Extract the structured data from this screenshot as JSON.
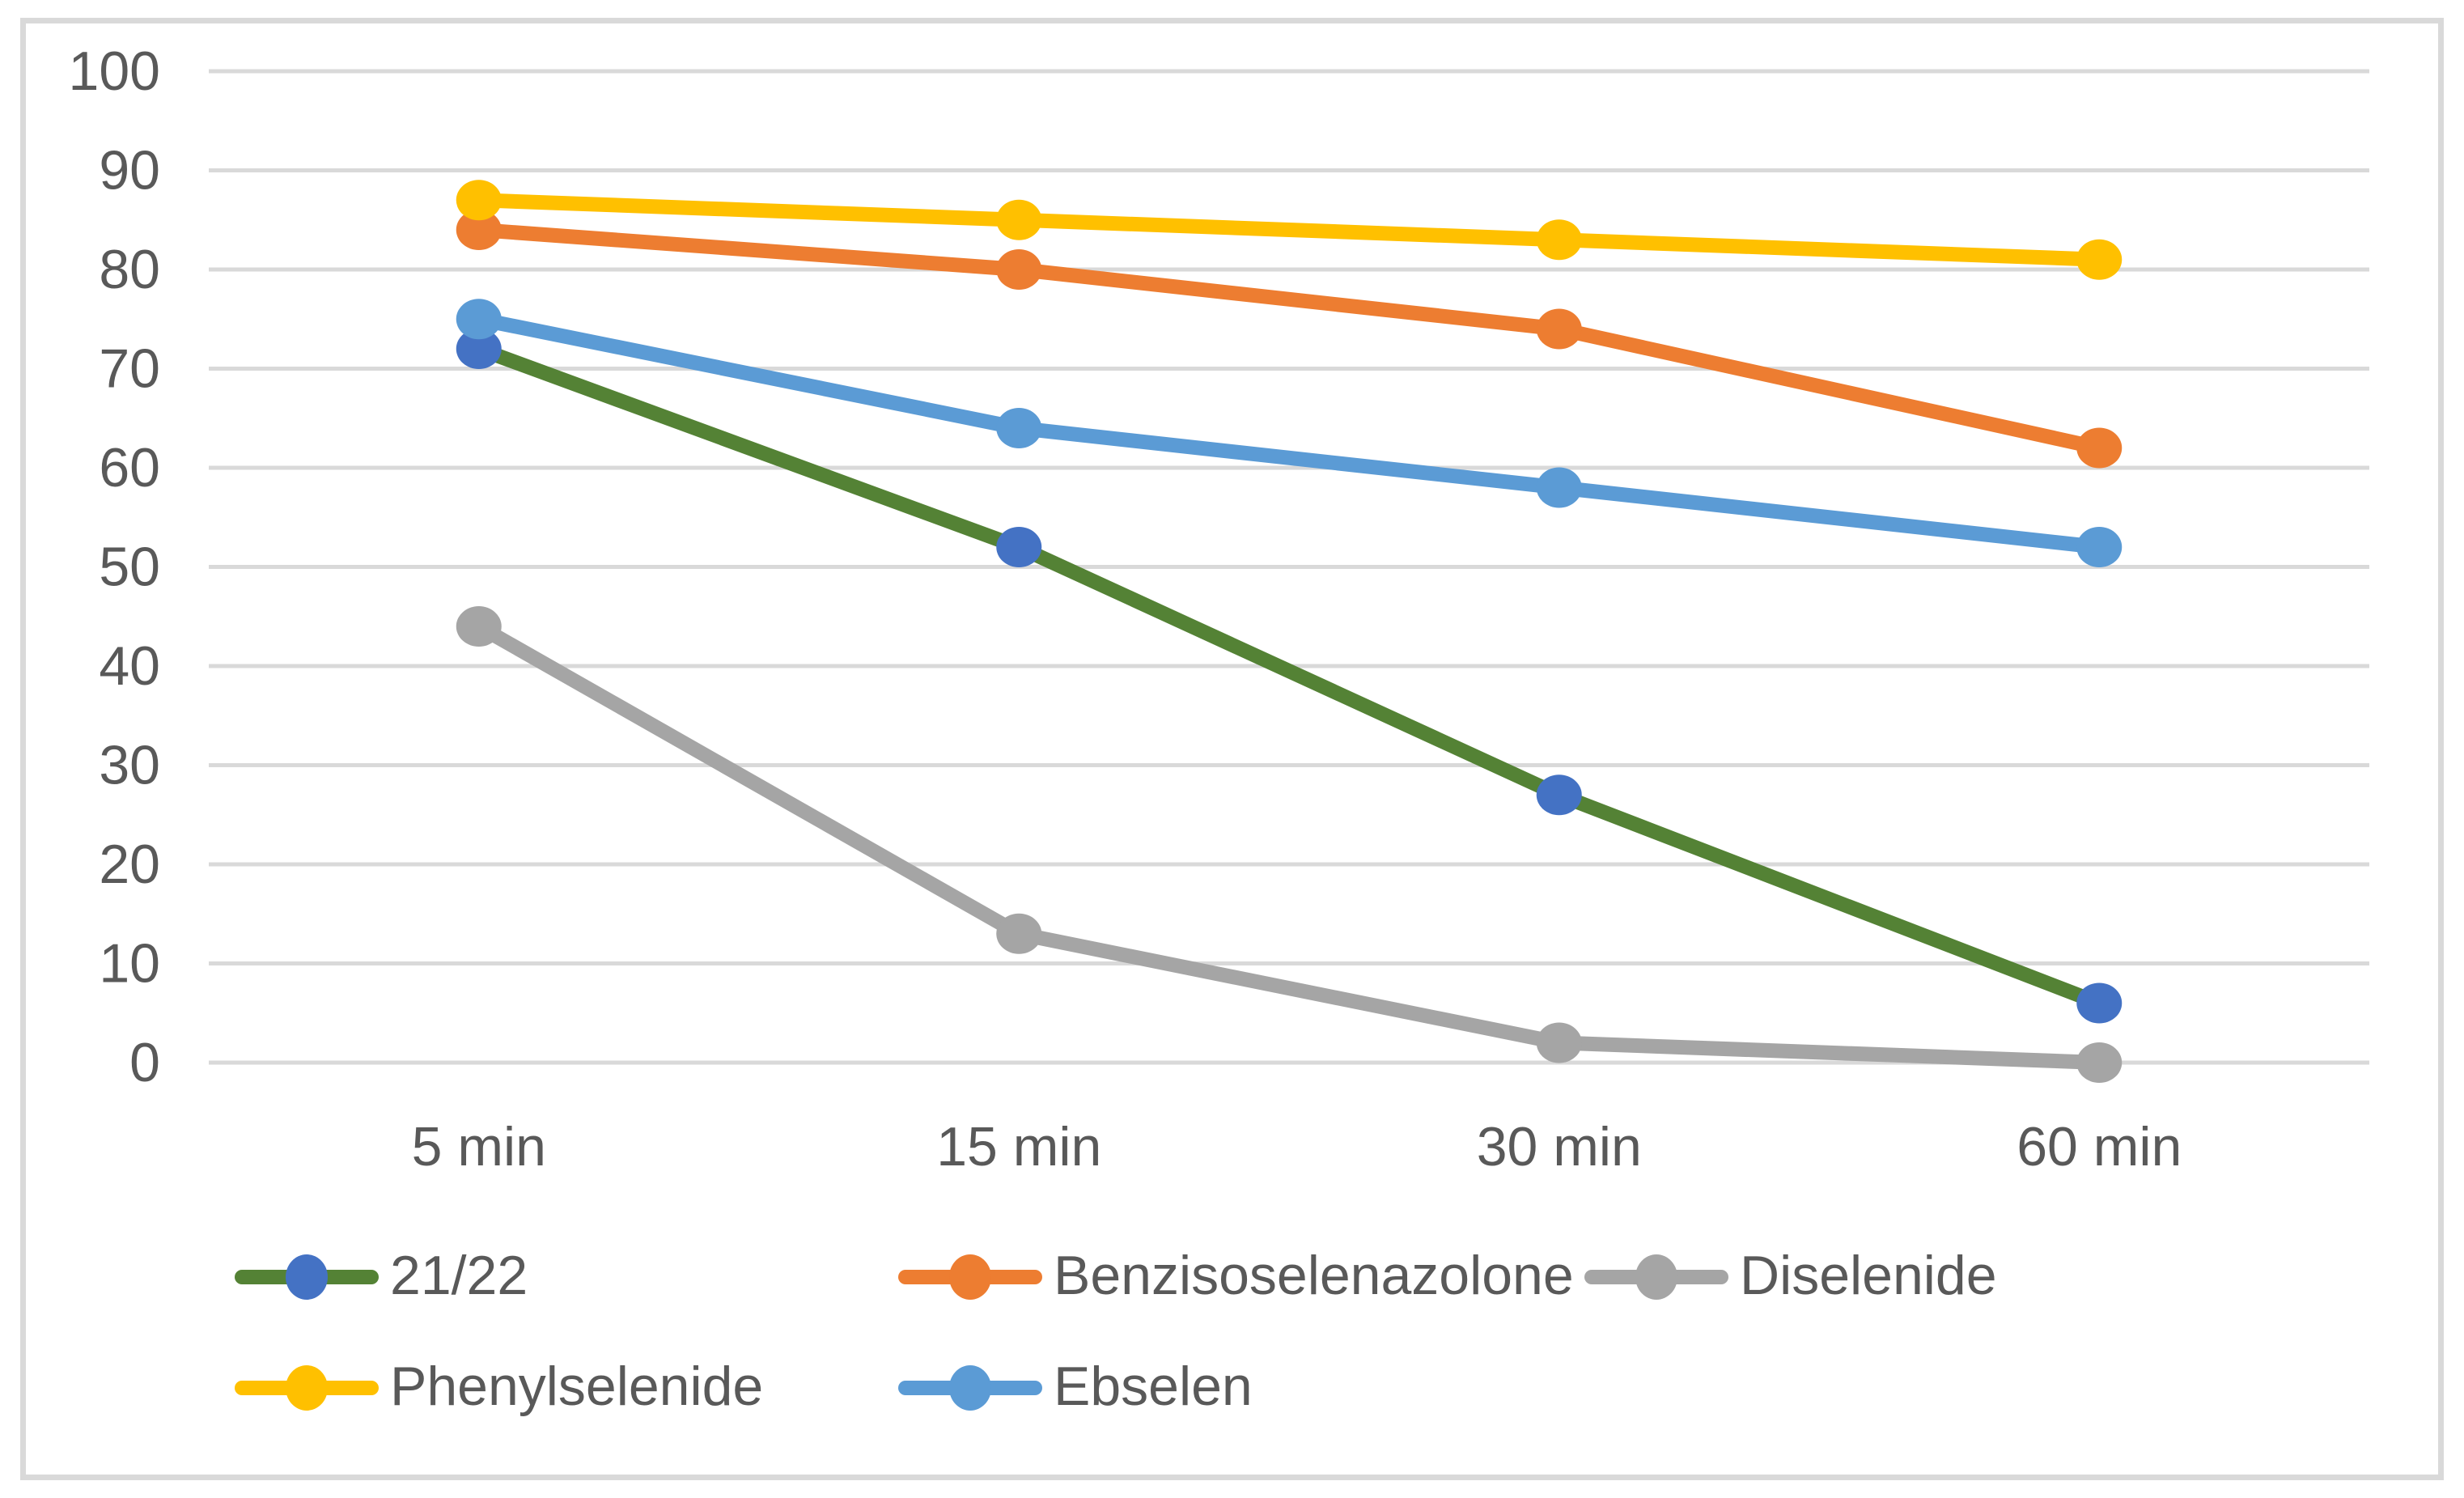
{
  "chart": {
    "background_color": "#FFFFFF",
    "frame_color": "#D9D9D9",
    "gridline_color": "#D9D9D9",
    "axis_text_color": "#595959"
  },
  "chart_data": {
    "type": "line",
    "title": "",
    "xlabel": "",
    "ylabel": "",
    "categories": [
      "5 min",
      "15 min",
      "30 min",
      "60 min"
    ],
    "y_ticks": [
      0,
      10,
      20,
      30,
      40,
      50,
      60,
      70,
      80,
      90,
      100
    ],
    "ylim": [
      0,
      100
    ],
    "grid": true,
    "legend_position": "bottom",
    "series": [
      {
        "name": "21/22",
        "values": [
          72,
          52,
          27,
          6
        ],
        "line_color": "#548235",
        "marker_color": "#4472C4"
      },
      {
        "name": "Benzisoselenazolone",
        "values": [
          84,
          80,
          74,
          62
        ],
        "line_color": "#ED7D31",
        "marker_color": "#ED7D31"
      },
      {
        "name": "Diselenide",
        "values": [
          44,
          13,
          2,
          0
        ],
        "line_color": "#A5A5A5",
        "marker_color": "#A5A5A5"
      },
      {
        "name": "Phenylselenide",
        "values": [
          87,
          85,
          83,
          81
        ],
        "line_color": "#FFC000",
        "marker_color": "#FFC000"
      },
      {
        "name": "Ebselen",
        "values": [
          75,
          64,
          58,
          52
        ],
        "line_color": "#5B9BD5",
        "marker_color": "#5B9BD5"
      }
    ]
  }
}
